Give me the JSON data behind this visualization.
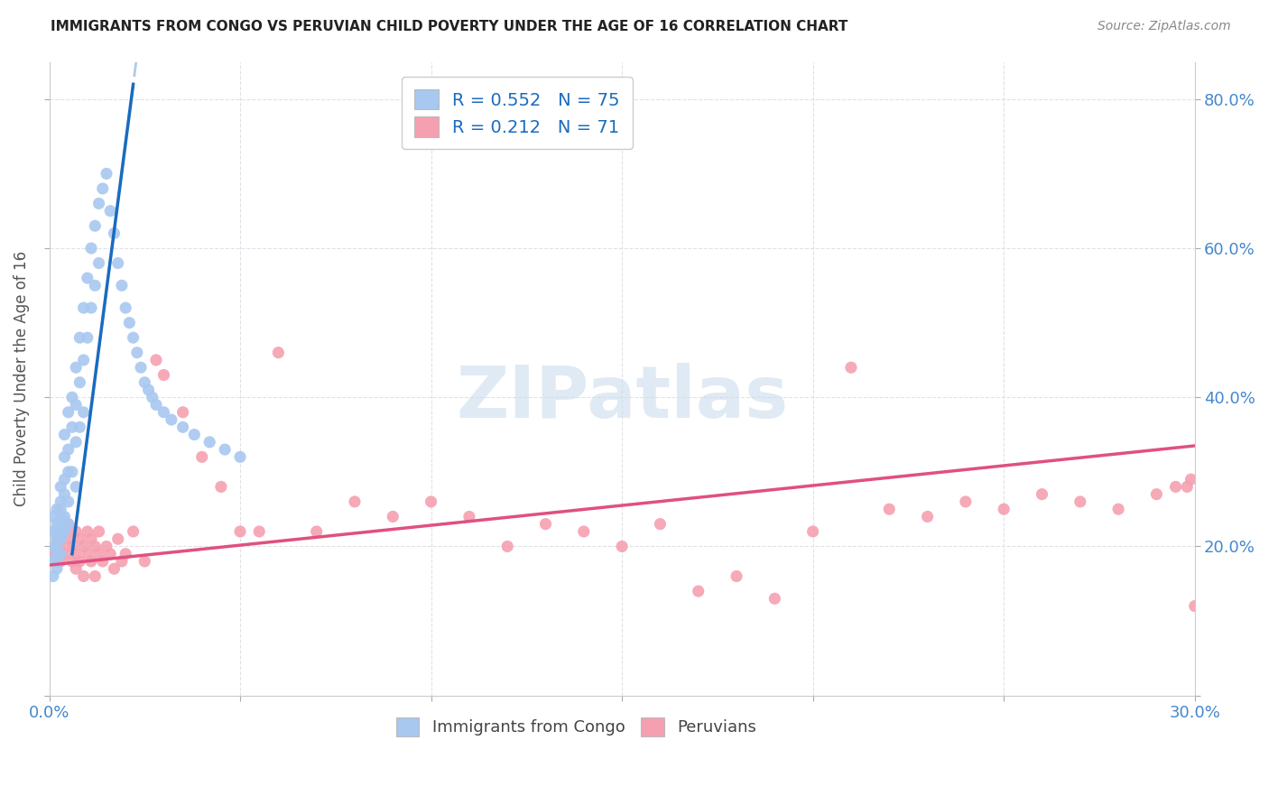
{
  "title": "IMMIGRANTS FROM CONGO VS PERUVIAN CHILD POVERTY UNDER THE AGE OF 16 CORRELATION CHART",
  "source": "Source: ZipAtlas.com",
  "ylabel": "Child Poverty Under the Age of 16",
  "xlim": [
    0.0,
    0.3
  ],
  "ylim": [
    0.0,
    0.85
  ],
  "xticks": [
    0.0,
    0.05,
    0.1,
    0.15,
    0.2,
    0.25,
    0.3
  ],
  "yticks": [
    0.0,
    0.2,
    0.4,
    0.6,
    0.8
  ],
  "ytick_labels_left": [
    "",
    "",
    "",
    "",
    ""
  ],
  "ytick_labels_right": [
    "",
    "20.0%",
    "40.0%",
    "60.0%",
    "80.0%"
  ],
  "xtick_labels": [
    "0.0%",
    "",
    "",
    "",
    "",
    "",
    "30.0%"
  ],
  "legend_labels": [
    "Immigrants from Congo",
    "Peruvians"
  ],
  "congo_color": "#a8c8f0",
  "peruvian_color": "#f5a0b0",
  "congo_line_color": "#1a6bbf",
  "peruvian_line_color": "#e05080",
  "trendline_dashed_color": "#b0cce8",
  "watermark_color": "#ccdded",
  "background_color": "#ffffff",
  "grid_color": "#e0e0e8",
  "title_color": "#222222",
  "axis_label_color": "#4488cc",
  "legend_text_color": "#1a6bbf",
  "source_color": "#888888",
  "ylabel_color": "#555555",
  "congo_scatter_x": [
    0.001,
    0.001,
    0.001,
    0.001,
    0.001,
    0.002,
    0.002,
    0.002,
    0.002,
    0.002,
    0.002,
    0.002,
    0.002,
    0.003,
    0.003,
    0.003,
    0.003,
    0.003,
    0.003,
    0.003,
    0.003,
    0.004,
    0.004,
    0.004,
    0.004,
    0.004,
    0.004,
    0.005,
    0.005,
    0.005,
    0.005,
    0.005,
    0.006,
    0.006,
    0.006,
    0.007,
    0.007,
    0.007,
    0.007,
    0.008,
    0.008,
    0.008,
    0.009,
    0.009,
    0.009,
    0.01,
    0.01,
    0.011,
    0.011,
    0.012,
    0.012,
    0.013,
    0.013,
    0.014,
    0.015,
    0.016,
    0.017,
    0.018,
    0.019,
    0.02,
    0.021,
    0.022,
    0.023,
    0.024,
    0.025,
    0.026,
    0.027,
    0.028,
    0.03,
    0.032,
    0.035,
    0.038,
    0.042,
    0.046,
    0.05
  ],
  "congo_scatter_y": [
    0.2,
    0.22,
    0.18,
    0.24,
    0.16,
    0.25,
    0.22,
    0.2,
    0.18,
    0.23,
    0.19,
    0.21,
    0.17,
    0.28,
    0.25,
    0.23,
    0.21,
    0.19,
    0.26,
    0.24,
    0.22,
    0.32,
    0.29,
    0.27,
    0.24,
    0.35,
    0.22,
    0.38,
    0.33,
    0.3,
    0.26,
    0.23,
    0.4,
    0.36,
    0.3,
    0.44,
    0.39,
    0.34,
    0.28,
    0.48,
    0.42,
    0.36,
    0.52,
    0.45,
    0.38,
    0.56,
    0.48,
    0.6,
    0.52,
    0.63,
    0.55,
    0.66,
    0.58,
    0.68,
    0.7,
    0.65,
    0.62,
    0.58,
    0.55,
    0.52,
    0.5,
    0.48,
    0.46,
    0.44,
    0.42,
    0.41,
    0.4,
    0.39,
    0.38,
    0.37,
    0.36,
    0.35,
    0.34,
    0.33,
    0.32
  ],
  "peruvian_scatter_x": [
    0.001,
    0.002,
    0.003,
    0.003,
    0.004,
    0.004,
    0.005,
    0.005,
    0.006,
    0.006,
    0.007,
    0.007,
    0.007,
    0.008,
    0.008,
    0.009,
    0.009,
    0.01,
    0.01,
    0.011,
    0.011,
    0.012,
    0.012,
    0.013,
    0.013,
    0.014,
    0.015,
    0.016,
    0.017,
    0.018,
    0.019,
    0.02,
    0.022,
    0.025,
    0.028,
    0.03,
    0.035,
    0.04,
    0.045,
    0.05,
    0.055,
    0.06,
    0.07,
    0.08,
    0.09,
    0.1,
    0.11,
    0.12,
    0.13,
    0.14,
    0.15,
    0.16,
    0.17,
    0.18,
    0.19,
    0.2,
    0.21,
    0.22,
    0.23,
    0.24,
    0.25,
    0.26,
    0.27,
    0.28,
    0.29,
    0.295,
    0.298,
    0.299,
    0.3,
    0.302,
    0.305
  ],
  "peruvian_scatter_y": [
    0.19,
    0.21,
    0.2,
    0.18,
    0.22,
    0.19,
    0.21,
    0.23,
    0.2,
    0.18,
    0.22,
    0.19,
    0.17,
    0.21,
    0.18,
    0.2,
    0.16,
    0.22,
    0.19,
    0.21,
    0.18,
    0.2,
    0.16,
    0.22,
    0.19,
    0.18,
    0.2,
    0.19,
    0.17,
    0.21,
    0.18,
    0.19,
    0.22,
    0.18,
    0.45,
    0.43,
    0.38,
    0.32,
    0.28,
    0.22,
    0.22,
    0.46,
    0.22,
    0.26,
    0.24,
    0.26,
    0.24,
    0.2,
    0.23,
    0.22,
    0.2,
    0.23,
    0.14,
    0.16,
    0.13,
    0.22,
    0.44,
    0.25,
    0.24,
    0.26,
    0.25,
    0.27,
    0.26,
    0.25,
    0.27,
    0.28,
    0.28,
    0.29,
    0.12,
    0.1,
    0.13
  ],
  "congo_R": 0.552,
  "congo_N": 75,
  "peru_R": 0.212,
  "peru_N": 71,
  "congo_trend_x0": 0.0,
  "congo_trend_x1": 0.022,
  "congo_trend_y0": 0.17,
  "congo_trend_y1": 0.82,
  "congo_trend_dash_x0": 0.0,
  "congo_trend_dash_x1": 0.014,
  "congo_trend_dash_y0": 0.17,
  "congo_trend_dash_y1": 0.59,
  "peru_trend_x0": 0.0,
  "peru_trend_x1": 0.3,
  "peru_trend_y0": 0.175,
  "peru_trend_y1": 0.335
}
